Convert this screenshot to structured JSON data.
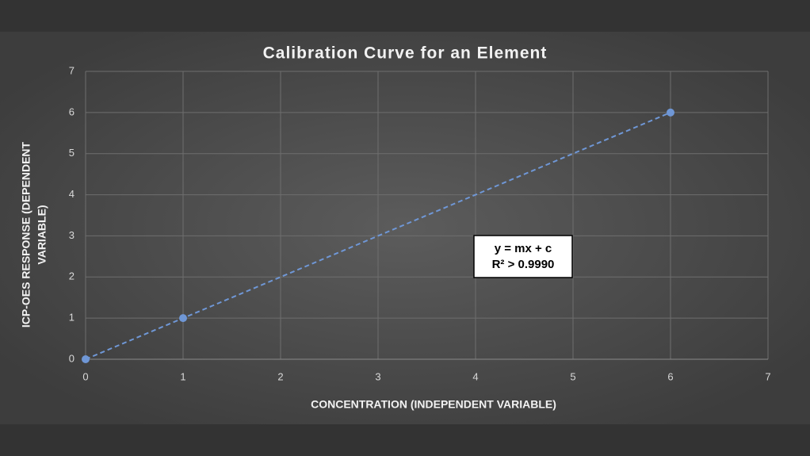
{
  "chart_data": {
    "type": "scatter",
    "title": "Calibration Curve for an Element",
    "xlabel": "CONCENTRATION (INDEPENDENT VARIABLE)",
    "ylabel": [
      "ICP-OES RESPONSE (DEPENDENT",
      "VARIABLE)"
    ],
    "annotation": [
      "y = mx + c",
      "R² > 0.9990"
    ],
    "series": [
      {
        "x": [
          0,
          1,
          6
        ],
        "values": [
          0,
          1,
          6
        ],
        "color": "#6f97d6",
        "line": "dashed"
      }
    ],
    "xlim": [
      0,
      7
    ],
    "xticks": [
      0,
      1,
      2,
      3,
      4,
      5,
      6,
      7
    ],
    "ylim": [
      0,
      7
    ],
    "yticks": [
      0,
      1,
      2,
      3,
      4,
      5,
      6,
      7
    ],
    "grid": true
  }
}
